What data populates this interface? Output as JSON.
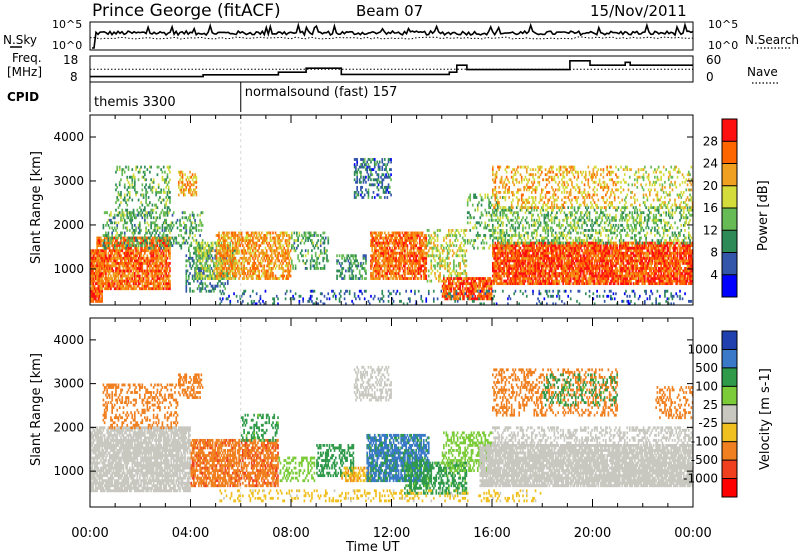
{
  "header": {
    "station": "Prince George (fitACF)",
    "beam": "Beam 07",
    "date": "15/Nov/2011"
  },
  "noise_panel": {
    "left_label": "N.Sky",
    "right_label": "N.Search",
    "left_ticks": [
      "10^5",
      "10^0"
    ],
    "right_ticks": [
      "10^5",
      "10^0"
    ]
  },
  "freq_panel": {
    "left_label_line1": "Freq.",
    "left_label_line2": "[MHz]",
    "right_label": "Nave",
    "left_ticks": [
      "18",
      "8"
    ],
    "right_ticks": [
      "60",
      "0"
    ],
    "freq_steps": [
      {
        "t": 0.0,
        "v": 10.0
      },
      {
        "t": 4.5,
        "v": 10.8
      },
      {
        "t": 7.5,
        "v": 12.0
      },
      {
        "t": 8.6,
        "v": 13.8
      },
      {
        "t": 10.0,
        "v": 11.0
      },
      {
        "t": 14.3,
        "v": 12.0
      },
      {
        "t": 14.6,
        "v": 15.2
      },
      {
        "t": 15.0,
        "v": 13.2
      },
      {
        "t": 19.1,
        "v": 17.2
      },
      {
        "t": 19.9,
        "v": 15.2
      },
      {
        "t": 21.3,
        "v": 16.5
      },
      {
        "t": 21.5,
        "v": 15.2
      },
      {
        "t": 24.0,
        "v": 15.2
      }
    ],
    "nave_level": 32
  },
  "cpid": {
    "label": "CPID",
    "segments": [
      {
        "label": "themis 3300",
        "start": 0.0
      },
      {
        "label": "normalsound (fast) 157",
        "start": 6.0
      }
    ]
  },
  "chart_data": [
    {
      "type": "heatmap",
      "title": "Power",
      "ylabel": "Slant Range [km]",
      "xlabel": "Time UT",
      "xlim": [
        0,
        24
      ],
      "ylim": [
        180,
        4500
      ],
      "y_ticks": [
        1000,
        2000,
        3000,
        4000
      ],
      "colorbar": {
        "label": "Power [dB]",
        "ticks": [
          4,
          8,
          12,
          16,
          20,
          24,
          28
        ],
        "range": [
          0,
          32
        ],
        "colors": [
          "#0000ff",
          "#3355aa",
          "#2e8b57",
          "#66bb55",
          "#d4dc3c",
          "#f0a020",
          "#ff6600",
          "#ff1010"
        ]
      },
      "echo_regions": [
        {
          "t0": 0.0,
          "t1": 0.5,
          "r0": 250,
          "r1": 1400,
          "val": 27,
          "cover": 0.9
        },
        {
          "t0": 0.3,
          "t1": 3.2,
          "r0": 550,
          "r1": 1700,
          "val": 25,
          "cover": 0.8
        },
        {
          "t0": 0.5,
          "t1": 4.5,
          "r0": 1500,
          "r1": 2300,
          "val": 12,
          "cover": 0.3
        },
        {
          "t0": 1.0,
          "t1": 3.2,
          "r0": 2200,
          "r1": 3300,
          "val": 13,
          "cover": 0.25
        },
        {
          "t0": 3.5,
          "t1": 4.2,
          "r0": 2700,
          "r1": 3200,
          "val": 22,
          "cover": 0.5
        },
        {
          "t0": 3.8,
          "t1": 5.5,
          "r0": 500,
          "r1": 1500,
          "val": 9,
          "cover": 0.35
        },
        {
          "t0": 4.2,
          "t1": 5.8,
          "r0": 800,
          "r1": 1600,
          "val": 16,
          "cover": 0.55
        },
        {
          "t0": 5.0,
          "t1": 8.0,
          "r0": 800,
          "r1": 1800,
          "val": 23,
          "cover": 0.6
        },
        {
          "t0": 8.0,
          "t1": 9.5,
          "r0": 1000,
          "r1": 1800,
          "val": 12,
          "cover": 0.3
        },
        {
          "t0": 9.8,
          "t1": 11.0,
          "r0": 800,
          "r1": 1300,
          "val": 11,
          "cover": 0.45
        },
        {
          "t0": 10.5,
          "t1": 12.0,
          "r0": 2600,
          "r1": 3500,
          "val": 8,
          "cover": 0.35
        },
        {
          "t0": 11.2,
          "t1": 13.4,
          "r0": 800,
          "r1": 1800,
          "val": 25,
          "cover": 0.75
        },
        {
          "t0": 13.4,
          "t1": 15.0,
          "r0": 700,
          "r1": 1900,
          "val": 17,
          "cover": 0.35
        },
        {
          "t0": 14.0,
          "t1": 16.0,
          "r0": 350,
          "r1": 800,
          "val": 27,
          "cover": 0.8
        },
        {
          "t0": 15.0,
          "t1": 16.5,
          "r0": 1500,
          "r1": 2700,
          "val": 13,
          "cover": 0.25
        },
        {
          "t0": 16.0,
          "t1": 24.0,
          "r0": 650,
          "r1": 1600,
          "val": 27,
          "cover": 0.85
        },
        {
          "t0": 16.0,
          "t1": 24.0,
          "r0": 1600,
          "r1": 2400,
          "val": 14,
          "cover": 0.35
        },
        {
          "t0": 16.0,
          "t1": 21.0,
          "r0": 2400,
          "r1": 3300,
          "val": 21,
          "cover": 0.3
        },
        {
          "t0": 21.0,
          "t1": 24.0,
          "r0": 2400,
          "r1": 3300,
          "val": 18,
          "cover": 0.2
        },
        {
          "t0": 5.0,
          "t1": 24.0,
          "r0": 200,
          "r1": 500,
          "val": 7,
          "cover": 0.15
        }
      ]
    },
    {
      "type": "heatmap",
      "title": "Velocity",
      "ylabel": "Slant Range [km]",
      "xlabel": "Time UT",
      "xlim": [
        0,
        24
      ],
      "ylim": [
        180,
        4500
      ],
      "y_ticks": [
        1000,
        2000,
        3000,
        4000
      ],
      "x_ticks": [
        "00:00",
        "04:00",
        "08:00",
        "12:00",
        "16:00",
        "20:00",
        "00:00"
      ],
      "colorbar": {
        "label": "Velocity [m s-1]",
        "ticks": [
          "1000",
          "500",
          "100",
          "25",
          "-25",
          "-100",
          "-500",
          "-1000"
        ],
        "colors": [
          "#2040b0",
          "#3a78c8",
          "#2e9a4a",
          "#7ccc3a",
          "#c8c8c0",
          "#f0c020",
          "#f08020",
          "#f04020",
          "#ff0000"
        ]
      },
      "echo_regions": [
        {
          "t0": 0.0,
          "t1": 4.0,
          "r0": 550,
          "r1": 2000,
          "val": 0,
          "cover": 0.8
        },
        {
          "t0": 0.5,
          "t1": 3.5,
          "r0": 2000,
          "r1": 3000,
          "val": -200,
          "cover": 0.3
        },
        {
          "t0": 3.5,
          "t1": 4.5,
          "r0": 2700,
          "r1": 3200,
          "val": -300,
          "cover": 0.4
        },
        {
          "t0": 4.0,
          "t1": 7.5,
          "r0": 650,
          "r1": 1700,
          "val": -400,
          "cover": 0.7
        },
        {
          "t0": 6.0,
          "t1": 7.5,
          "r0": 1700,
          "r1": 2300,
          "val": 150,
          "cover": 0.3
        },
        {
          "t0": 7.5,
          "t1": 9.0,
          "r0": 800,
          "r1": 1300,
          "val": 60,
          "cover": 0.35
        },
        {
          "t0": 9.0,
          "t1": 10.5,
          "r0": 900,
          "r1": 1600,
          "val": 300,
          "cover": 0.45
        },
        {
          "t0": 10.0,
          "t1": 11.2,
          "r0": 800,
          "r1": 1100,
          "val": -80,
          "cover": 0.5
        },
        {
          "t0": 10.5,
          "t1": 12.0,
          "r0": 2600,
          "r1": 3400,
          "val": 5,
          "cover": 0.35
        },
        {
          "t0": 11.0,
          "t1": 13.5,
          "r0": 800,
          "r1": 1800,
          "val": 600,
          "cover": 0.75
        },
        {
          "t0": 12.5,
          "t1": 15.0,
          "r0": 500,
          "r1": 1200,
          "val": 150,
          "cover": 0.5
        },
        {
          "t0": 14.0,
          "t1": 16.0,
          "r0": 1000,
          "r1": 1900,
          "val": 60,
          "cover": 0.4
        },
        {
          "t0": 15.5,
          "t1": 24.0,
          "r0": 650,
          "r1": 1600,
          "val": 0,
          "cover": 0.85
        },
        {
          "t0": 16.0,
          "t1": 24.0,
          "r0": 1600,
          "r1": 2000,
          "val": 0,
          "cover": 0.35
        },
        {
          "t0": 16.0,
          "t1": 21.0,
          "r0": 2300,
          "r1": 3300,
          "val": -300,
          "cover": 0.3
        },
        {
          "t0": 18.0,
          "t1": 21.0,
          "r0": 2500,
          "r1": 3200,
          "val": 150,
          "cover": 0.2
        },
        {
          "t0": 22.5,
          "t1": 24.0,
          "r0": 2200,
          "r1": 2900,
          "val": -300,
          "cover": 0.3
        },
        {
          "t0": 5.0,
          "t1": 18.0,
          "r0": 300,
          "r1": 550,
          "val": -50,
          "cover": 0.2
        }
      ]
    }
  ]
}
